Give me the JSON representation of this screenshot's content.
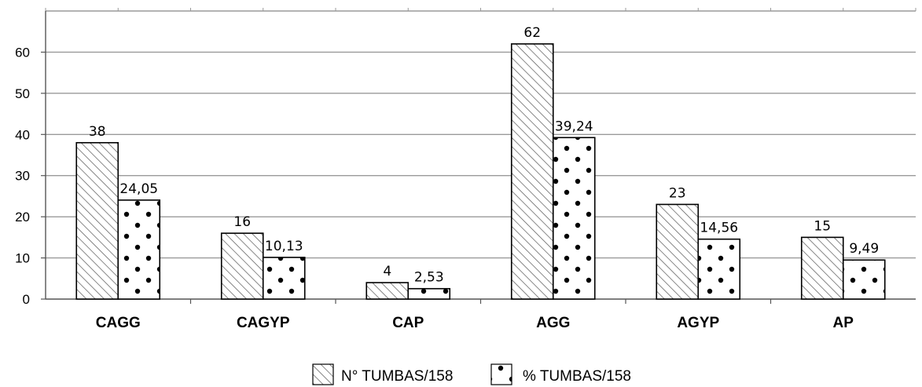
{
  "chart_data": {
    "type": "bar",
    "categories": [
      "CAGG",
      "CAGYP",
      "CAP",
      "AGG",
      "AGYP",
      "AP"
    ],
    "series": [
      {
        "name": "N° TUMBAS/158",
        "values": [
          38,
          16,
          4,
          62,
          23,
          15
        ],
        "labels": [
          "38",
          "16",
          "4",
          "62",
          "23",
          "15"
        ],
        "pattern": "diagonal-hatch"
      },
      {
        "name": "% TUMBAS/158",
        "values": [
          24.05,
          10.13,
          2.53,
          39.24,
          14.56,
          9.49
        ],
        "labels": [
          "24,05",
          "10,13",
          "2,53",
          "39,24",
          "14,56",
          "9,49"
        ],
        "pattern": "dots"
      }
    ],
    "yticks": [
      "0",
      "10",
      "20",
      "30",
      "40",
      "50",
      "60"
    ],
    "ylim": [
      0,
      70
    ],
    "grid": true,
    "legend_position": "bottom-center",
    "colors": {
      "gridline": "#9a9a9a",
      "bar_stroke": "#000000",
      "pattern_ink": "#000000",
      "background": "#ffffff"
    }
  }
}
